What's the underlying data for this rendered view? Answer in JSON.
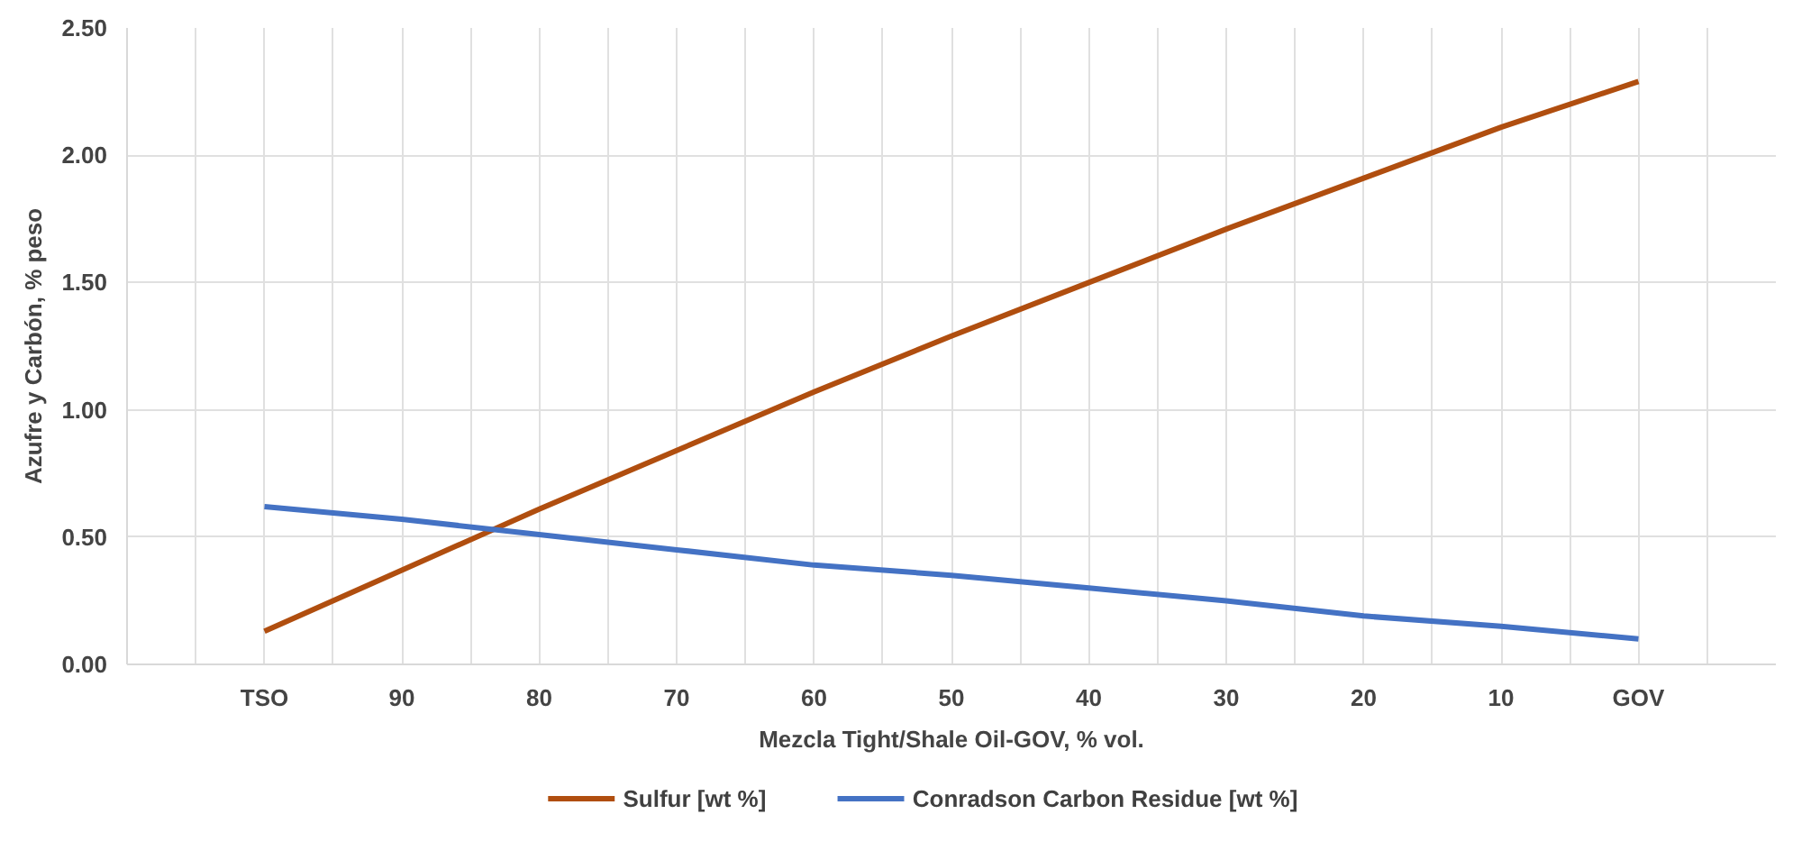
{
  "chart_data": {
    "type": "line",
    "xlabel": "Mezcla Tight/Shale Oil-GOV, % vol.",
    "ylabel": "Azufre y Carbón, % peso",
    "categories": [
      "TSO",
      "90",
      "80",
      "70",
      "60",
      "50",
      "40",
      "30",
      "20",
      "10",
      "GOV"
    ],
    "series": [
      {
        "name": "Sulfur [wt %]",
        "color": "#b04e0f",
        "values": [
          0.13,
          0.37,
          0.61,
          0.84,
          1.07,
          1.29,
          1.5,
          1.71,
          1.91,
          2.11,
          2.29
        ]
      },
      {
        "name": "Conradson Carbon Residue [wt %]",
        "color": "#4472c4",
        "values": [
          0.62,
          0.57,
          0.51,
          0.45,
          0.39,
          0.35,
          0.3,
          0.25,
          0.19,
          0.15,
          0.1
        ]
      }
    ],
    "ylim": [
      0,
      2.5
    ],
    "yticks": [
      {
        "value": 0,
        "label": "0.00"
      },
      {
        "value": 0.5,
        "label": "0.50"
      },
      {
        "value": 1,
        "label": "1.00"
      },
      {
        "value": 1.5,
        "label": "1.50"
      },
      {
        "value": 2,
        "label": "2.00"
      },
      {
        "value": 2.5,
        "label": "2.50"
      }
    ],
    "grid": true,
    "legend": "bottom",
    "marker": "none",
    "line_style": "solid"
  }
}
